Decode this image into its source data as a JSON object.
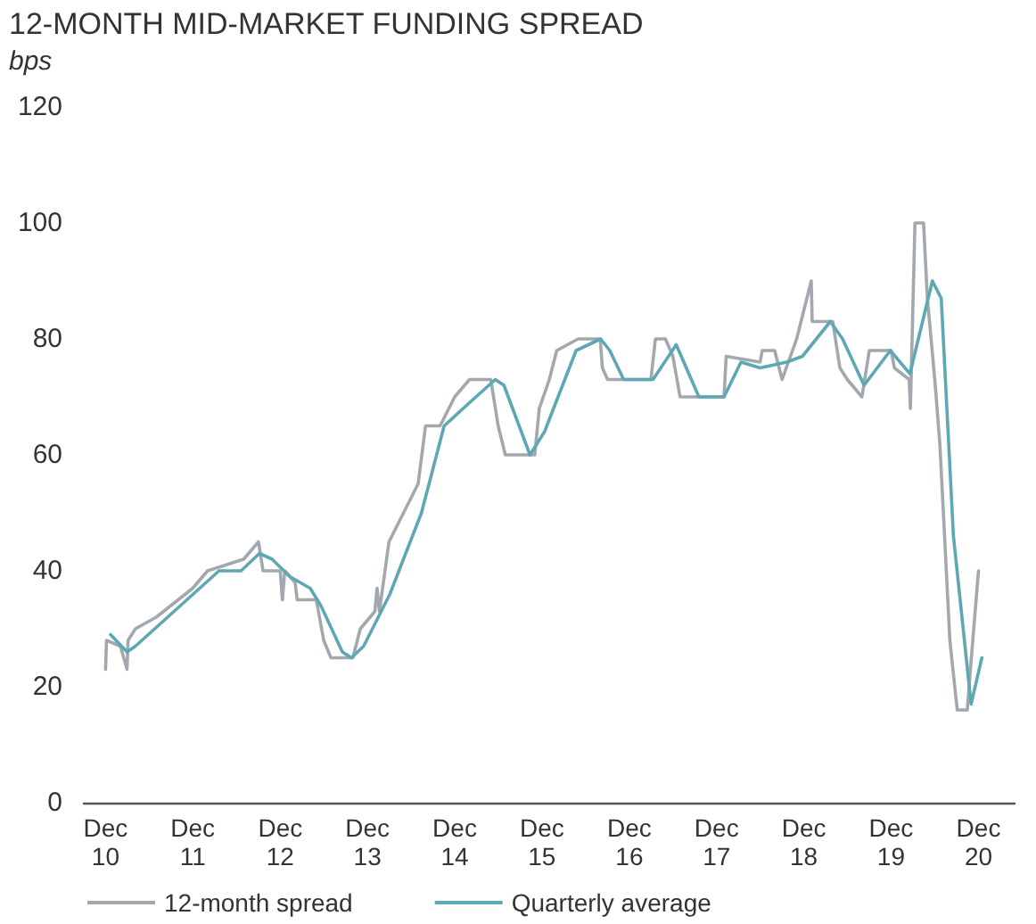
{
  "chart_data": {
    "type": "line",
    "title": "12-MONTH MID-MARKET FUNDING SPREAD",
    "ylabel": "bps",
    "xlim": [
      "2010-09",
      "2021-05"
    ],
    "xticks": [
      {
        "value": "2010-12",
        "label": "Dec\n10"
      },
      {
        "value": "2011-12",
        "label": "Dec\n11"
      },
      {
        "value": "2012-12",
        "label": "Dec\n12"
      },
      {
        "value": "2013-12",
        "label": "Dec\n13"
      },
      {
        "value": "2014-12",
        "label": "Dec\n14"
      },
      {
        "value": "2015-12",
        "label": "Dec\n15"
      },
      {
        "value": "2016-12",
        "label": "Dec\n16"
      },
      {
        "value": "2017-12",
        "label": "Dec\n17"
      },
      {
        "value": "2018-12",
        "label": "Dec\n18"
      },
      {
        "value": "2019-12",
        "label": "Dec\n19"
      },
      {
        "value": "2020-12",
        "label": "Dec\n20"
      }
    ],
    "ylim": [
      0,
      120
    ],
    "yticks": [
      0,
      20,
      40,
      60,
      80,
      100,
      120
    ],
    "grid": false,
    "legend": "bottom left",
    "marker": "none",
    "line_style": "solid",
    "series": [
      {
        "name": "12-month spread",
        "color": "#a3a8ae",
        "x": [
          "2010-12-01",
          "2010-12-05",
          "2011-02-01",
          "2011-03-01",
          "2011-03-05",
          "2011-04-05",
          "2011-07-01",
          "2011-10-01",
          "2011-12-01",
          "2012-02-01",
          "2012-07-01",
          "2012-09-01",
          "2012-09-20",
          "2012-12-01",
          "2012-12-10",
          "2012-12-20",
          "2013-02-01",
          "2013-02-10",
          "2013-05-01",
          "2013-06-01",
          "2013-07-01",
          "2013-10-01",
          "2013-11-01",
          "2014-01-01",
          "2014-01-10",
          "2014-01-20",
          "2014-03-01",
          "2014-05-01",
          "2014-07-01",
          "2014-08-01",
          "2014-10-01",
          "2014-12-01",
          "2015-02-01",
          "2015-05-01",
          "2015-06-01",
          "2015-07-01",
          "2015-11-01",
          "2015-11-20",
          "2016-01-01",
          "2016-02-01",
          "2016-05-01",
          "2016-08-01",
          "2016-08-10",
          "2016-09-01",
          "2017-03-01",
          "2017-03-20",
          "2017-05-01",
          "2017-06-01",
          "2017-07-01",
          "2018-01-01",
          "2018-01-10",
          "2018-06-01",
          "2018-06-10",
          "2018-08-01",
          "2018-09-01",
          "2018-11-01",
          "2019-01-01",
          "2019-01-05",
          "2019-04-01",
          "2019-05-01",
          "2019-06-01",
          "2019-08-01",
          "2019-09-01",
          "2019-12-01",
          "2019-12-15",
          "2020-02-15",
          "2020-02-20",
          "2020-03-10",
          "2020-04-15",
          "2020-05-01",
          "2020-06-01",
          "2020-06-22",
          "2020-07-12",
          "2020-08-03",
          "2020-09-03",
          "2020-10-15",
          "2020-11-01",
          "2020-12-01"
        ],
        "values": [
          23,
          28,
          27,
          23,
          28,
          30,
          32,
          35,
          37,
          40,
          42,
          45,
          40,
          40,
          35,
          40,
          38,
          35,
          35,
          28,
          25,
          25,
          30,
          33,
          37,
          33,
          45,
          50,
          55,
          65,
          65,
          70,
          73,
          73,
          65,
          60,
          60,
          68,
          73,
          78,
          80,
          80,
          75,
          73,
          73,
          80,
          80,
          77,
          70,
          70,
          77,
          76,
          78,
          78,
          73,
          80,
          90,
          83,
          83,
          75,
          73,
          70,
          78,
          78,
          75,
          73,
          68,
          100,
          100,
          87,
          73,
          62,
          46,
          28,
          16,
          16,
          25,
          40
        ]
      },
      {
        "name": "Quarterly average",
        "color": "#5ea8b4",
        "x": [
          "2010-12-22",
          "2011-03-01",
          "2011-04-05",
          "2012-03-20",
          "2012-06-20",
          "2012-09-05",
          "2012-10-28",
          "2013-01-10",
          "2013-04-05",
          "2013-05-20",
          "2013-08-18",
          "2013-09-25",
          "2013-11-15",
          "2014-03-05",
          "2014-07-15",
          "2014-10-18",
          "2015-02-01",
          "2015-05-20",
          "2015-06-25",
          "2015-10-12",
          "2015-12-12",
          "2016-04-22",
          "2016-08-03",
          "2016-09-10",
          "2016-11-07",
          "2017-03-10",
          "2017-06-15",
          "2017-09-18",
          "2018-01-01",
          "2018-03-13",
          "2018-06-01",
          "2018-09-20",
          "2018-11-25",
          "2019-03-22",
          "2019-05-12",
          "2019-08-10",
          "2019-11-28",
          "2020-02-18",
          "2020-05-22",
          "2020-06-28",
          "2020-08-18",
          "2020-10-31",
          "2020-12-15"
        ],
        "values": [
          29,
          26,
          27,
          40,
          40,
          43,
          42,
          39,
          37,
          34,
          26,
          25,
          27,
          36,
          50,
          65,
          69,
          73,
          72,
          60,
          64,
          78,
          80,
          78,
          73,
          73,
          79,
          70,
          70,
          76,
          75,
          76,
          77,
          83,
          80,
          72,
          78,
          74,
          90,
          87,
          46,
          17,
          25
        ]
      }
    ]
  }
}
